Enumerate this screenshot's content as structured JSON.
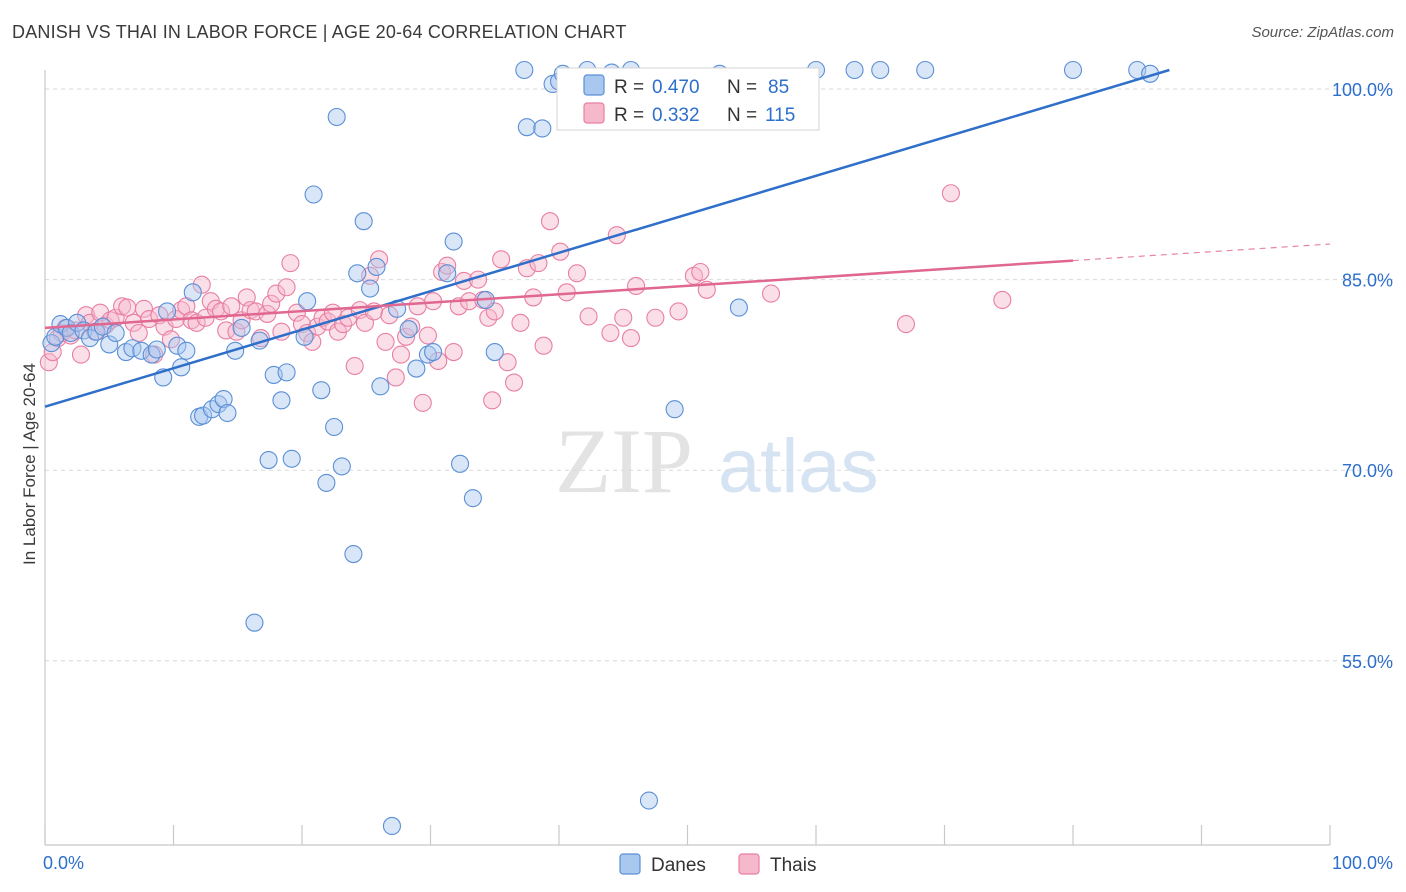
{
  "header": {
    "title": "DANISH VS THAI IN LABOR FORCE | AGE 20-64 CORRELATION CHART",
    "source": "Source: ZipAtlas.com"
  },
  "watermark": {
    "zip": "ZIP",
    "atlas": "atlas"
  },
  "legend_box": {
    "rows": [
      {
        "r_label": "R =",
        "r_value": "0.470",
        "n_label": "N =",
        "n_value": "85"
      },
      {
        "r_label": "R =",
        "r_value": "0.332",
        "n_label": "N =",
        "n_value": "115"
      }
    ]
  },
  "colors": {
    "danes_fill": "#a9c8f0",
    "danes_stroke": "#5b8fd6",
    "danes_line": "#2f6fc9",
    "thais_fill": "#f6b8cb",
    "thais_stroke": "#e87fa2",
    "thais_line": "#e0678f",
    "value_text": "#2d6fcc",
    "grid": "#d9d9d9"
  },
  "chart_data": {
    "type": "scatter",
    "title": "DANISH VS THAI IN LABOR FORCE | AGE 20-64 CORRELATION CHART",
    "xlabel": "",
    "ylabel": "In Labor Force | Age 20-64",
    "xlim": [
      0,
      100
    ],
    "ylim": [
      40.5,
      101.5
    ],
    "x_tick_labels": [
      "0.0%",
      "100.0%"
    ],
    "y_ticks": [
      55,
      70,
      85,
      100
    ],
    "y_tick_labels": [
      "55.0%",
      "70.0%",
      "85.0%",
      "100.0%"
    ],
    "grid": "horizontal dashed",
    "legend_placement": "bottom-center",
    "series": [
      {
        "name": "Danes",
        "R": 0.47,
        "N": 85,
        "trend": {
          "x": [
            0,
            87.5
          ],
          "y": [
            75.0,
            101.5
          ]
        },
        "points": [
          [
            0.5,
            80.0
          ],
          [
            0.8,
            80.5
          ],
          [
            1.2,
            81.5
          ],
          [
            1.7,
            81.2
          ],
          [
            2.0,
            80.8
          ],
          [
            2.5,
            81.6
          ],
          [
            3.0,
            81.0
          ],
          [
            3.5,
            80.4
          ],
          [
            4.0,
            80.9
          ],
          [
            4.5,
            81.3
          ],
          [
            5.0,
            79.9
          ],
          [
            5.5,
            80.8
          ],
          [
            6.3,
            79.3
          ],
          [
            6.8,
            79.6
          ],
          [
            7.5,
            79.4
          ],
          [
            8.3,
            79.1
          ],
          [
            8.7,
            79.5
          ],
          [
            9.2,
            77.3
          ],
          [
            9.5,
            82.5
          ],
          [
            10.3,
            79.8
          ],
          [
            10.6,
            78.1
          ],
          [
            11.0,
            79.4
          ],
          [
            11.5,
            84.0
          ],
          [
            12.0,
            74.2
          ],
          [
            12.3,
            74.3
          ],
          [
            13.0,
            74.8
          ],
          [
            13.5,
            75.2
          ],
          [
            13.9,
            75.6
          ],
          [
            14.2,
            74.5
          ],
          [
            14.8,
            79.4
          ],
          [
            15.3,
            81.2
          ],
          [
            16.3,
            58.0
          ],
          [
            16.7,
            80.2
          ],
          [
            17.4,
            70.8
          ],
          [
            17.8,
            77.5
          ],
          [
            18.4,
            75.5
          ],
          [
            18.8,
            77.7
          ],
          [
            19.2,
            70.9
          ],
          [
            20.2,
            80.5
          ],
          [
            20.4,
            83.3
          ],
          [
            20.9,
            91.7
          ],
          [
            21.5,
            76.3
          ],
          [
            21.9,
            69.0
          ],
          [
            22.5,
            73.4
          ],
          [
            22.7,
            97.8
          ],
          [
            23.1,
            70.3
          ],
          [
            24.0,
            63.4
          ],
          [
            24.3,
            85.5
          ],
          [
            24.8,
            89.6
          ],
          [
            25.3,
            84.3
          ],
          [
            25.8,
            86.0
          ],
          [
            26.1,
            76.6
          ],
          [
            27.0,
            42.0
          ],
          [
            27.4,
            82.7
          ],
          [
            28.3,
            81.1
          ],
          [
            28.9,
            78.0
          ],
          [
            29.8,
            79.1
          ],
          [
            30.2,
            79.3
          ],
          [
            31.3,
            85.5
          ],
          [
            31.8,
            88.0
          ],
          [
            32.3,
            70.5
          ],
          [
            33.3,
            67.8
          ],
          [
            34.3,
            83.4
          ],
          [
            35.0,
            79.3
          ],
          [
            37.3,
            101.5
          ],
          [
            37.5,
            97.0
          ],
          [
            38.7,
            96.9
          ],
          [
            39.5,
            100.4
          ],
          [
            40.0,
            100.6
          ],
          [
            40.3,
            101.2
          ],
          [
            42.2,
            101.5
          ],
          [
            44.1,
            101.3
          ],
          [
            44.6,
            101.0
          ],
          [
            45.6,
            101.5
          ],
          [
            47.0,
            44.0
          ],
          [
            49.0,
            74.8
          ],
          [
            52.5,
            101.2
          ],
          [
            54.0,
            82.8
          ],
          [
            60.0,
            101.5
          ],
          [
            63.0,
            101.5
          ],
          [
            65.0,
            101.5
          ],
          [
            68.5,
            101.5
          ],
          [
            80.0,
            101.5
          ],
          [
            85.0,
            101.5
          ],
          [
            86.0,
            101.2
          ]
        ]
      },
      {
        "name": "Thais",
        "R": 0.332,
        "N": 115,
        "trend": {
          "x": [
            0,
            80
          ],
          "y": [
            81.2,
            86.5
          ]
        },
        "trend_dashed": {
          "x": [
            80,
            100
          ],
          "y": [
            86.5,
            87.8
          ]
        },
        "points": [
          [
            0.3,
            78.5
          ],
          [
            0.6,
            79.3
          ],
          [
            1.0,
            80.4
          ],
          [
            1.3,
            80.8
          ],
          [
            1.6,
            81.2
          ],
          [
            2.0,
            80.6
          ],
          [
            2.4,
            81.0
          ],
          [
            2.8,
            79.1
          ],
          [
            3.2,
            82.2
          ],
          [
            3.5,
            81.6
          ],
          [
            3.9,
            80.9
          ],
          [
            4.3,
            82.4
          ],
          [
            4.7,
            81.4
          ],
          [
            5.1,
            81.8
          ],
          [
            5.5,
            82.0
          ],
          [
            6.0,
            82.9
          ],
          [
            6.4,
            82.8
          ],
          [
            6.9,
            81.6
          ],
          [
            7.3,
            80.8
          ],
          [
            7.7,
            82.7
          ],
          [
            8.1,
            81.9
          ],
          [
            8.5,
            79.1
          ],
          [
            8.9,
            82.2
          ],
          [
            9.3,
            81.3
          ],
          [
            9.8,
            80.3
          ],
          [
            10.2,
            81.9
          ],
          [
            10.6,
            82.6
          ],
          [
            11.0,
            82.9
          ],
          [
            11.4,
            81.8
          ],
          [
            11.8,
            81.6
          ],
          [
            12.2,
            84.6
          ],
          [
            12.5,
            82.0
          ],
          [
            12.9,
            83.3
          ],
          [
            13.3,
            82.7
          ],
          [
            13.7,
            82.5
          ],
          [
            14.1,
            81.0
          ],
          [
            14.5,
            82.9
          ],
          [
            14.9,
            80.9
          ],
          [
            15.3,
            81.8
          ],
          [
            15.7,
            83.6
          ],
          [
            16.0,
            82.6
          ],
          [
            16.4,
            82.5
          ],
          [
            16.8,
            80.4
          ],
          [
            17.3,
            82.3
          ],
          [
            17.6,
            83.1
          ],
          [
            18.0,
            83.9
          ],
          [
            18.4,
            80.9
          ],
          [
            18.8,
            84.4
          ],
          [
            19.1,
            86.3
          ],
          [
            19.6,
            82.4
          ],
          [
            20.0,
            81.5
          ],
          [
            20.4,
            80.8
          ],
          [
            20.8,
            80.1
          ],
          [
            21.2,
            81.3
          ],
          [
            21.6,
            82.0
          ],
          [
            22.0,
            81.7
          ],
          [
            22.4,
            82.4
          ],
          [
            22.8,
            80.9
          ],
          [
            23.2,
            81.5
          ],
          [
            23.6,
            82.0
          ],
          [
            24.1,
            78.2
          ],
          [
            24.5,
            82.6
          ],
          [
            24.9,
            81.6
          ],
          [
            25.3,
            85.3
          ],
          [
            25.6,
            82.5
          ],
          [
            26.0,
            86.6
          ],
          [
            26.5,
            80.1
          ],
          [
            26.8,
            82.2
          ],
          [
            27.3,
            77.3
          ],
          [
            27.7,
            79.1
          ],
          [
            28.1,
            80.5
          ],
          [
            28.5,
            81.3
          ],
          [
            29.0,
            82.9
          ],
          [
            29.4,
            75.3
          ],
          [
            29.8,
            80.6
          ],
          [
            30.2,
            83.3
          ],
          [
            30.6,
            78.6
          ],
          [
            30.9,
            85.6
          ],
          [
            31.3,
            86.1
          ],
          [
            31.8,
            79.3
          ],
          [
            32.2,
            82.9
          ],
          [
            32.6,
            84.9
          ],
          [
            33.0,
            83.3
          ],
          [
            33.7,
            85.0
          ],
          [
            34.1,
            83.4
          ],
          [
            34.5,
            82.0
          ],
          [
            34.8,
            75.5
          ],
          [
            35.0,
            82.5
          ],
          [
            35.5,
            86.6
          ],
          [
            36.0,
            78.5
          ],
          [
            36.5,
            76.9
          ],
          [
            37.0,
            81.6
          ],
          [
            37.5,
            85.9
          ],
          [
            38.0,
            83.6
          ],
          [
            38.4,
            86.3
          ],
          [
            38.8,
            79.8
          ],
          [
            39.3,
            89.6
          ],
          [
            40.1,
            87.2
          ],
          [
            40.6,
            84.0
          ],
          [
            41.4,
            85.5
          ],
          [
            42.3,
            82.1
          ],
          [
            44.0,
            80.8
          ],
          [
            44.5,
            88.5
          ],
          [
            45.0,
            82.0
          ],
          [
            45.6,
            80.4
          ],
          [
            46.0,
            84.5
          ],
          [
            47.5,
            82.0
          ],
          [
            49.3,
            82.5
          ],
          [
            50.5,
            85.3
          ],
          [
            51.0,
            85.6
          ],
          [
            51.5,
            84.2
          ],
          [
            56.5,
            83.9
          ],
          [
            67.0,
            81.5
          ],
          [
            74.5,
            83.4
          ],
          [
            70.5,
            91.8
          ]
        ]
      }
    ]
  },
  "bottom_legend": {
    "items": [
      "Danes",
      "Thais"
    ]
  }
}
